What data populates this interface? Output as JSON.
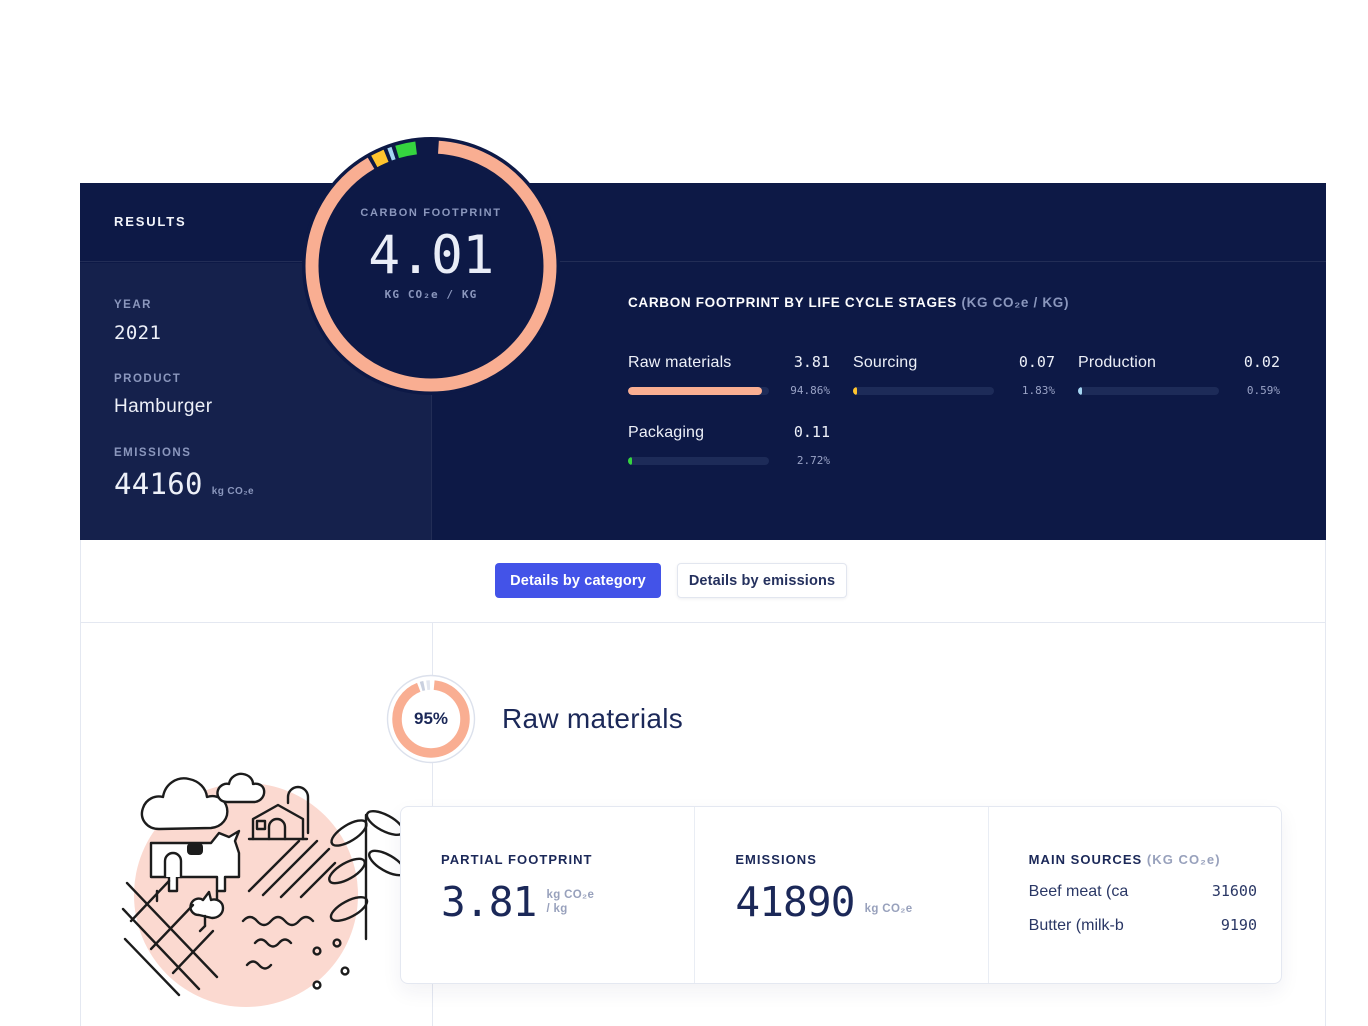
{
  "theme": {
    "panel_navy": "#0D1946",
    "accent_blue": "#4353E8",
    "salmon": "#F9AE92",
    "yellow": "#FFC42E",
    "light_blue": "#A5D6F2",
    "green": "#35D43F",
    "pink_illustration": "#FBD9D0",
    "light_border": "#E4E8F1",
    "dark_text": "#1B2858"
  },
  "results_panel": {
    "title": "RESULTS",
    "gauge": {
      "label": "CARBON FOOTPRINT",
      "value": "4.01",
      "unit": "KG CO₂e / KG"
    },
    "year_label": "YEAR",
    "year_value": "2021",
    "product_label": "PRODUCT",
    "product_value": "Hamburger",
    "emissions_label": "EMISSIONS",
    "emissions_value": "44160",
    "emissions_unit": "kg CO₂e",
    "stages_title": "CARBON FOOTPRINT BY LIFE CYCLE STAGES",
    "stages_unit": "(KG CO₂e / KG)",
    "stages": [
      {
        "label": "Raw materials",
        "value": "3.81",
        "pct": 94.86,
        "pct_label": "94.86%",
        "color": "#F9AE92"
      },
      {
        "label": "Sourcing",
        "value": "0.07",
        "pct": 1.83,
        "pct_label": "1.83%",
        "color": "#FFC42E"
      },
      {
        "label": "Production",
        "value": "0.02",
        "pct": 0.59,
        "pct_label": "0.59%",
        "color": "#A5D6F2"
      },
      {
        "label": "Packaging",
        "value": "0.11",
        "pct": 2.72,
        "pct_label": "2.72%",
        "color": "#35D43F"
      }
    ]
  },
  "toolbar": {
    "category_button": "Details by category",
    "emissions_button": "Details by emissions"
  },
  "category_section": {
    "share_label": "95%",
    "share_pct": 95,
    "donut_rest_colors": [
      "#C9D0DF",
      "#E2E6EF"
    ],
    "title": "Raw materials",
    "cards": {
      "partial": {
        "label": "PARTIAL FOOTPRINT",
        "value": "3.81",
        "unit_line1": "kg CO₂e",
        "unit_line2": "/ kg"
      },
      "emissions": {
        "label": "EMISSIONS",
        "value": "41890",
        "unit": "kg CO₂e"
      },
      "sources": {
        "label": "MAIN SOURCES",
        "unit": "(KG CO₂e)",
        "rows": [
          {
            "name": "Beef meat (ca",
            "value": "31600"
          },
          {
            "name": "Butter (milk-b",
            "value": "9190"
          }
        ]
      }
    }
  }
}
